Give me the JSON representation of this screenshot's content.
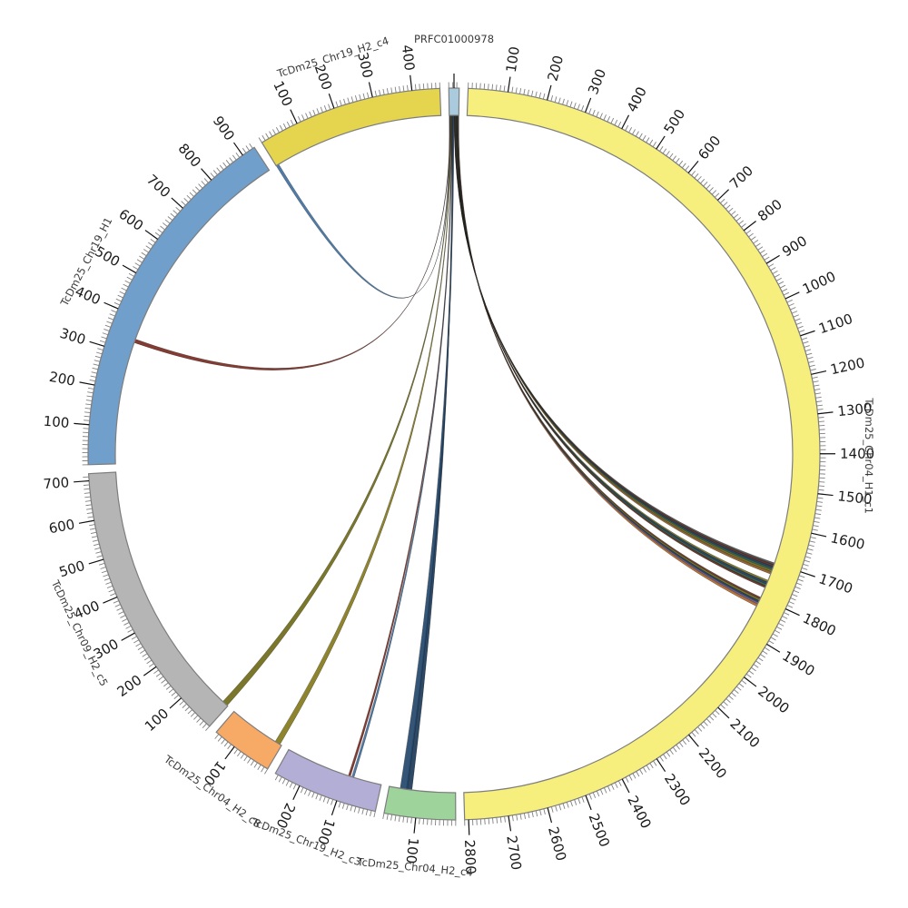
{
  "chart_data": {
    "type": "circos",
    "title": "PRFC01000978",
    "layout": "circular synteny plot, segments clockwise from top",
    "minor_tick_interval": 10,
    "major_tick_interval": 100,
    "segments": [
      {
        "name": "PRFC01000978",
        "length": 26,
        "color": "#a9cbdd",
        "tick_labels": []
      },
      {
        "name": "TcDm25_Chr04_H1_c1",
        "length": 2810,
        "color": "#f6ef7d",
        "tick_labels": [
          100,
          200,
          300,
          400,
          500,
          600,
          700,
          800,
          900,
          1000,
          1100,
          1200,
          1300,
          1400,
          1500,
          1600,
          1700,
          1800,
          1900,
          2000,
          2100,
          2200,
          2300,
          2400,
          2500,
          2600,
          2700,
          2800
        ]
      },
      {
        "name": "TcDm25_Chr04_H2_c4",
        "length": 180,
        "color": "#9ed49b",
        "tick_labels": [
          100
        ]
      },
      {
        "name": "TcDm25_Chr19_H2_c3",
        "length": 268,
        "color": "#b2aed6",
        "tick_labels": [
          100,
          200
        ]
      },
      {
        "name": "TcDm25_Chr04_H2_c8",
        "length": 158,
        "color": "#f7a966",
        "tick_labels": [
          100
        ]
      },
      {
        "name": "TcDm25_Chr09_H2_c5",
        "length": 718,
        "color": "#b5b5b5",
        "tick_labels": [
          100,
          200,
          300,
          400,
          500,
          600,
          700
        ]
      },
      {
        "name": "TcDm25_Chr19_H1",
        "length": 935,
        "color": "#6f9fca",
        "tick_labels": [
          100,
          200,
          300,
          400,
          500,
          600,
          700,
          800,
          900
        ]
      },
      {
        "name": "TcDm25_Chr19_H2_c4",
        "length": 470,
        "color": "#e4d44e",
        "tick_labels": [
          100,
          200,
          300,
          400
        ]
      }
    ],
    "links_source": "PRFC01000978",
    "links": [
      {
        "to": "TcDm25_Chr19_H2_c4",
        "to_range": [
          0,
          8
        ],
        "from_range": [
          0,
          1.5
        ],
        "color": "#41709f"
      },
      {
        "to": "TcDm25_Chr19_H1",
        "to_range": [
          333,
          343
        ],
        "from_range": [
          1.5,
          3
        ],
        "color": "#7a2a20"
      },
      {
        "to": "TcDm25_Chr09_H2_c5",
        "to_range": [
          2,
          18
        ],
        "from_range": [
          3,
          4.5
        ],
        "color": "#6f6a18"
      },
      {
        "to": "TcDm25_Chr04_H2_c8",
        "to_range": [
          5,
          20
        ],
        "from_range": [
          4.5,
          6
        ],
        "color": "#857a1c"
      },
      {
        "to": "TcDm25_Chr19_H2_c3",
        "to_range": [
          86,
          92
        ],
        "from_range": [
          6,
          7
        ],
        "color": "#7a2a20"
      },
      {
        "to": "TcDm25_Chr19_H2_c3",
        "to_range": [
          76,
          82
        ],
        "from_range": [
          7,
          8
        ],
        "color": "#41709f"
      },
      {
        "to": "TcDm25_Chr04_H2_c4",
        "to_range": [
          118,
          134
        ],
        "from_range": [
          8,
          10.5
        ],
        "color": "#1c3a58"
      },
      {
        "to": "TcDm25_Chr04_H2_c4",
        "to_range": [
          130,
          150
        ],
        "from_range": [
          10.5,
          13
        ],
        "color": "#24466a"
      },
      {
        "to": "TcDm25_Chr04_H1_c1",
        "to_range": [
          1700,
          1707
        ],
        "from_range": [
          13,
          13.8
        ],
        "color": "#4a4a4a"
      },
      {
        "to": "TcDm25_Chr04_H1_c1",
        "to_range": [
          1705,
          1712
        ],
        "from_range": [
          13.8,
          14.6
        ],
        "color": "#5f2f22"
      },
      {
        "to": "TcDm25_Chr04_H1_c1",
        "to_range": [
          1710,
          1717
        ],
        "from_range": [
          14.6,
          15.4
        ],
        "color": "#1e3c5c"
      },
      {
        "to": "TcDm25_Chr04_H1_c1",
        "to_range": [
          1715,
          1722
        ],
        "from_range": [
          15.4,
          16.2
        ],
        "color": "#2e5c4a"
      },
      {
        "to": "TcDm25_Chr04_H1_c1",
        "to_range": [
          1720,
          1727
        ],
        "from_range": [
          16.2,
          17
        ],
        "color": "#75701e"
      },
      {
        "to": "TcDm25_Chr04_H1_c1",
        "to_range": [
          1725,
          1732
        ],
        "from_range": [
          17,
          17.8
        ],
        "color": "#8a5a28"
      },
      {
        "to": "TcDm25_Chr04_H1_c1",
        "to_range": [
          1750,
          1757
        ],
        "from_range": [
          17.8,
          18.6
        ],
        "color": "#75701e"
      },
      {
        "to": "TcDm25_Chr04_H1_c1",
        "to_range": [
          1755,
          1762
        ],
        "from_range": [
          18.6,
          19.4
        ],
        "color": "#1e3c5c"
      },
      {
        "to": "TcDm25_Chr04_H1_c1",
        "to_range": [
          1761,
          1768
        ],
        "from_range": [
          19.4,
          20.2
        ],
        "color": "#2e5c4a"
      },
      {
        "to": "TcDm25_Chr04_H1_c1",
        "to_range": [
          1766,
          1772
        ],
        "from_range": [
          20.2,
          21
        ],
        "color": "#5f2f22"
      },
      {
        "to": "TcDm25_Chr04_H1_c1",
        "to_range": [
          1800,
          1807
        ],
        "from_range": [
          21,
          22
        ],
        "color": "#5f2f22"
      },
      {
        "to": "TcDm25_Chr04_H1_c1",
        "to_range": [
          1805,
          1812
        ],
        "from_range": [
          22,
          23
        ],
        "color": "#75701e"
      },
      {
        "to": "TcDm25_Chr04_H1_c1",
        "to_range": [
          1810,
          1817
        ],
        "from_range": [
          23,
          24
        ],
        "color": "#1e3c5c"
      },
      {
        "to": "TcDm25_Chr04_H1_c1",
        "to_range": [
          1815,
          1822
        ],
        "from_range": [
          24,
          25
        ],
        "color": "#6a5a8a"
      },
      {
        "to": "TcDm25_Chr04_H1_c1",
        "to_range": [
          1820,
          1827
        ],
        "from_range": [
          25,
          26
        ],
        "color": "#b06a30"
      }
    ],
    "style_colors": {
      "segment_outline": "#7d7d7d",
      "major_tick": "#111111",
      "minor_tick": "#808080",
      "tick_label": "#1a1a1a",
      "segment_label": "#3a3a3a",
      "background": "#ffffff"
    }
  }
}
